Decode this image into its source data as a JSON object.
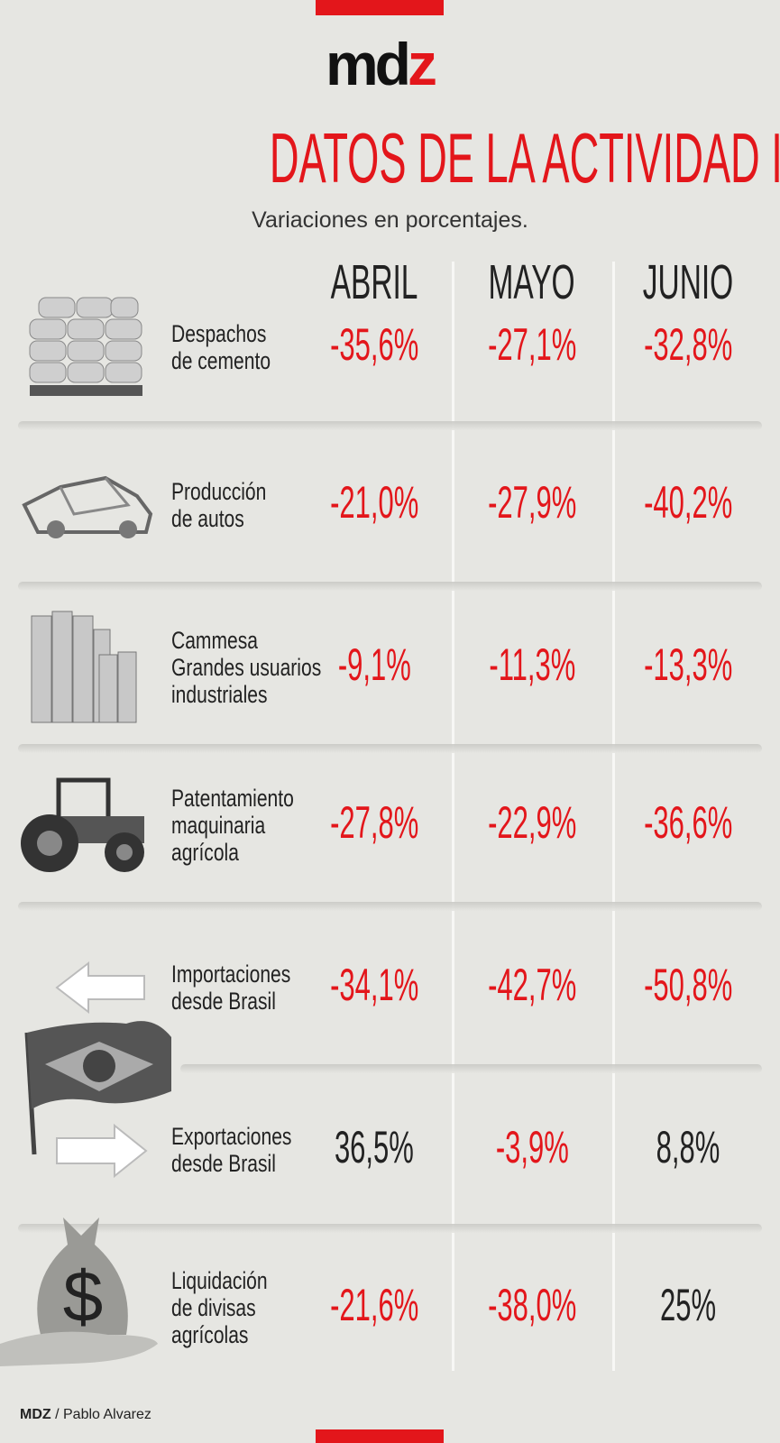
{
  "brand": {
    "logo": "mdz",
    "accent": "#e3161b"
  },
  "title": "DATOS DE LA ACTIVIDAD INDUSTRIAL",
  "subtitle": "Variaciones en porcentajes.",
  "credit": {
    "brand": "MDZ",
    "author": "/ Pablo Alvarez"
  },
  "chart_data": {
    "type": "table",
    "title": "DATOS DE LA ACTIVIDAD INDUSTRIAL",
    "subtitle": "Variaciones en porcentajes.",
    "columns": [
      "ABRIL",
      "MAYO",
      "JUNIO"
    ],
    "rows": [
      {
        "label": [
          "Despachos",
          "de cemento"
        ],
        "values": [
          "-35,6%",
          "-27,1%",
          "-32,8%"
        ],
        "numeric": [
          -35.6,
          -27.1,
          -32.8
        ],
        "icon": "cement-bags-icon"
      },
      {
        "label": [
          "Producción",
          "de autos"
        ],
        "values": [
          "-21,0%",
          "-27,9%",
          "-40,2%"
        ],
        "numeric": [
          -21.0,
          -27.9,
          -40.2
        ],
        "icon": "car-chassis-icon"
      },
      {
        "label": [
          "Cammesa",
          "Grandes usuarios",
          "industriales"
        ],
        "values": [
          "-9,1%",
          "-11,3%",
          "-13,3%"
        ],
        "numeric": [
          -9.1,
          -11.3,
          -13.3
        ],
        "icon": "silos-icon"
      },
      {
        "label": [
          "Patentamiento",
          "maquinaria",
          "agrícola"
        ],
        "values": [
          "-27,8%",
          "-22,9%",
          "-36,6%"
        ],
        "numeric": [
          -27.8,
          -22.9,
          -36.6
        ],
        "icon": "tractor-icon"
      },
      {
        "label": [
          "Importaciones",
          "desde Brasil"
        ],
        "values": [
          "-34,1%",
          "-42,7%",
          "-50,8%"
        ],
        "numeric": [
          -34.1,
          -42.7,
          -50.8
        ],
        "icon": "arrow-left-icon"
      },
      {
        "label": [
          "Exportaciones",
          "desde Brasil"
        ],
        "values": [
          "36,5%",
          "-3,9%",
          "8,8%"
        ],
        "numeric": [
          36.5,
          -3.9,
          8.8
        ],
        "icon": "arrow-right-icon"
      },
      {
        "label": [
          "Liquidación",
          "de divisas",
          "agrícolas"
        ],
        "values": [
          "-21,6%",
          "-38,0%",
          "25%"
        ],
        "numeric": [
          -21.6,
          -38.0,
          25
        ],
        "icon": "money-bag-icon"
      }
    ],
    "colors": {
      "negative": "#e3161b",
      "positive": "#222222"
    }
  }
}
